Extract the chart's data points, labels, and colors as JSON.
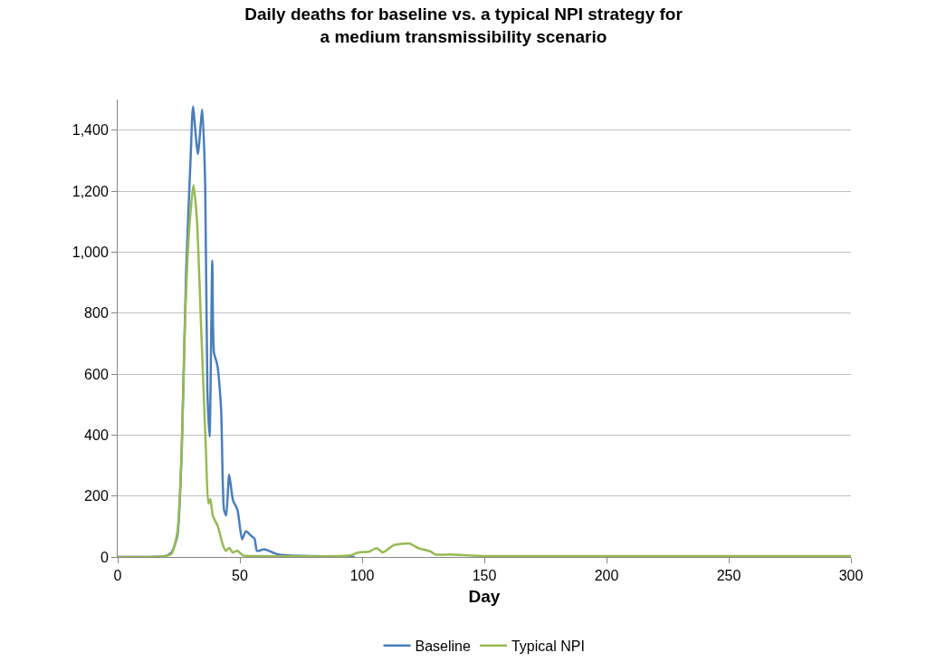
{
  "chart_data": {
    "type": "line",
    "title": "Daily deaths for baseline vs. a typical NPI strategy for\na medium transmissibility scenario",
    "xlabel": "Day",
    "xlim": [
      0,
      300
    ],
    "xticks": [
      0,
      50,
      100,
      150,
      200,
      250,
      300
    ],
    "ylim": [
      0,
      1500
    ],
    "yticks": [
      0,
      200,
      400,
      600,
      800,
      {
        "value": 1000,
        "label": "1,000"
      },
      {
        "value": 1200,
        "label": "1,200"
      },
      {
        "value": 1400,
        "label": "1,400"
      }
    ],
    "grid": "y",
    "legend": "bottom",
    "marker": "none",
    "line_style": "solid",
    "series": [
      {
        "name": "Baseline",
        "color": "#4a7ebb",
        "x": [
          0,
          10,
          19,
          22,
          24.4,
          26.2,
          28,
          29.9,
          30.8,
          32.8,
          34.6,
          35.8,
          36.7,
          37.6,
          38.7,
          39.4,
          40.7,
          42.3,
          43.5,
          44.4,
          45.6,
          47.2,
          49,
          50.9,
          52.5,
          54.5,
          56,
          57,
          60,
          65,
          70,
          80,
          90,
          97
        ],
        "values": [
          0,
          0,
          2,
          15,
          68,
          350,
          933,
          1322,
          1477,
          1322,
          1467,
          1224,
          544,
          394,
          972,
          670,
          632,
          486,
          155,
          136,
          270,
          185,
          155,
          58,
          85,
          70,
          60,
          20,
          25,
          10,
          5,
          3,
          2,
          0
        ]
      },
      {
        "name": "Typical NPI",
        "color": "#98b954",
        "x": [
          0,
          10,
          19,
          22,
          24.4,
          26.2,
          27.4,
          29.3,
          31,
          32.4,
          34.2,
          36.1,
          37.1,
          37.9,
          38.9,
          41,
          43,
          44.2,
          45.6,
          47,
          49,
          51.4,
          60,
          70,
          80,
          90,
          95,
          98.5,
          103,
          106,
          108.5,
          113,
          119.5,
          123,
          128,
          130,
          136,
          150,
          175,
          200,
          225,
          250,
          275,
          300
        ],
        "values": [
          0,
          0,
          2,
          10,
          80,
          350,
          740,
          1080,
          1220,
          1108,
          740,
          350,
          175,
          190,
          136,
          100,
          40,
          20,
          30,
          15,
          20,
          5,
          3,
          2,
          2,
          3,
          5,
          15,
          18,
          29,
          15,
          39,
          44,
          29,
          18,
          8,
          8,
          3,
          3,
          3,
          3,
          3,
          3,
          3
        ]
      }
    ]
  }
}
